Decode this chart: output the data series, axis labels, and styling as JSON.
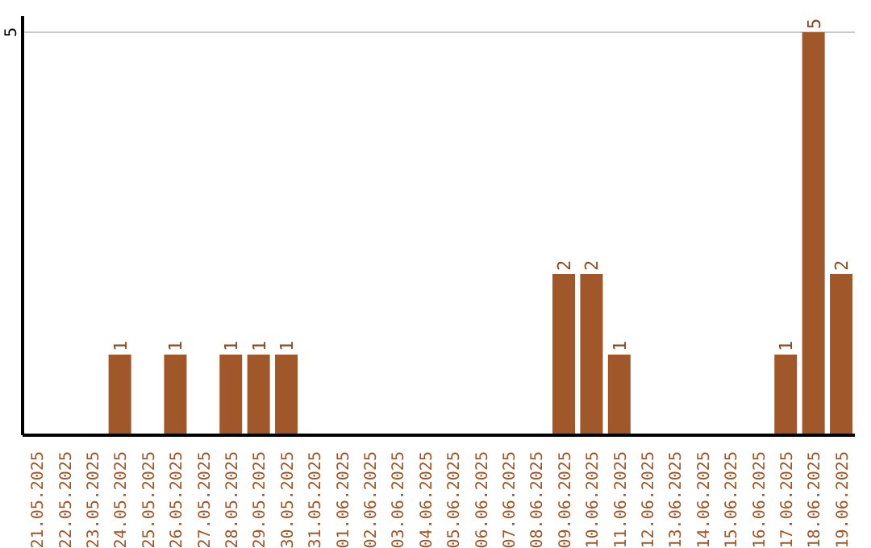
{
  "chart_data": {
    "type": "bar",
    "categories": [
      "21.05.2025",
      "22.05.2025",
      "23.05.2025",
      "24.05.2025",
      "25.05.2025",
      "26.05.2025",
      "27.05.2025",
      "28.05.2025",
      "29.05.2025",
      "30.05.2025",
      "31.05.2025",
      "01.06.2025",
      "02.06.2025",
      "03.06.2025",
      "04.06.2025",
      "05.06.2025",
      "06.06.2025",
      "07.06.2025",
      "08.06.2025",
      "09.06.2025",
      "10.06.2025",
      "11.06.2025",
      "12.06.2025",
      "13.06.2025",
      "14.06.2025",
      "15.06.2025",
      "16.06.2025",
      "17.06.2025",
      "18.06.2025",
      "19.06.2025"
    ],
    "values": [
      0,
      0,
      0,
      1,
      0,
      1,
      0,
      1,
      1,
      1,
      0,
      0,
      0,
      0,
      0,
      0,
      0,
      0,
      0,
      2,
      2,
      1,
      0,
      0,
      0,
      0,
      0,
      1,
      5,
      2
    ],
    "value_labels": [
      null,
      null,
      null,
      "1",
      null,
      "1",
      null,
      "1",
      "1",
      "1",
      null,
      null,
      null,
      null,
      null,
      null,
      null,
      null,
      null,
      "2",
      "2",
      "1",
      null,
      null,
      null,
      null,
      null,
      "1",
      "5",
      "2"
    ],
    "color": "#a0572a",
    "ylim": [
      0,
      5.2
    ],
    "yticks": [
      5
    ],
    "grid": "y"
  }
}
